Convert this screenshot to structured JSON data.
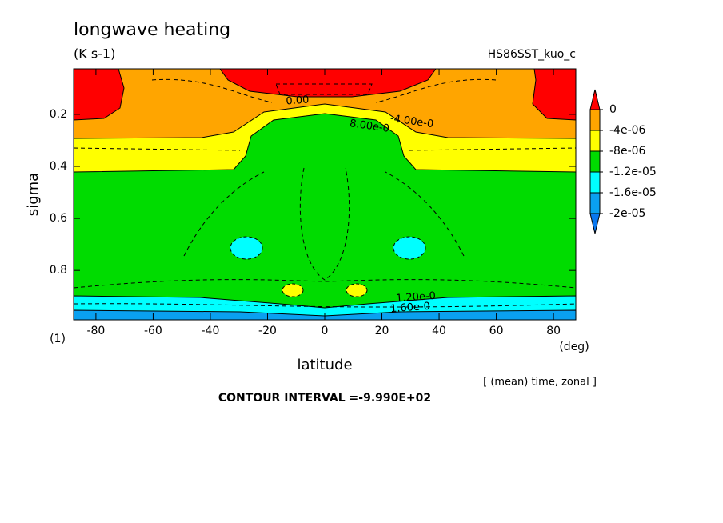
{
  "chart_data": {
    "type": "contour",
    "title": "longwave heating",
    "subtitle": "(K s-1)",
    "dataset": "HS86SST_kuo_c",
    "x_label": "latitude",
    "x_unit": "(deg)",
    "y_label": "sigma",
    "y_unit": "(1)",
    "note": "[ (mean) time, zonal ]",
    "contour_interval": "CONTOUR INTERVAL =-9.990E+02",
    "xlim": [
      -87.8,
      87.8
    ],
    "xticks": [
      -80,
      -60,
      -40,
      -20,
      0,
      20,
      40,
      60,
      80
    ],
    "ylim": [
      0.025,
      0.99
    ],
    "yticks": [
      0.2,
      0.4,
      0.6,
      0.8
    ],
    "levels": [
      0,
      {
        "value": -4e-06,
        "label": "-4e-06"
      },
      {
        "value": -8e-06,
        "label": "-8e-06"
      },
      {
        "value": -1.2e-05,
        "label": "-1.2e-05"
      },
      {
        "value": -1.6e-05,
        "label": "-1.6e-05"
      },
      {
        "value": -2e-05,
        "label": "-2e-05"
      }
    ],
    "colors": [
      "#ff0000",
      "#ffa500",
      "#ffff00",
      "#00dc00",
      "#00ffff",
      "#0aa0f0",
      "#0a78f0"
    ],
    "annotations": [
      "0.00",
      "-4.00e-0",
      "8.00e-0",
      "1.20e-0",
      "1.60e-0"
    ]
  }
}
